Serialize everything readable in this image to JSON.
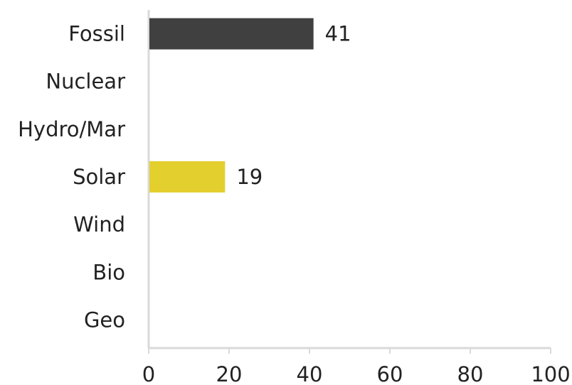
{
  "chart_data": {
    "type": "bar",
    "orientation": "horizontal",
    "categories": [
      "Fossil",
      "Nuclear",
      "Hydro/Mar",
      "Solar",
      "Wind",
      "Bio",
      "Geo"
    ],
    "values": [
      41,
      null,
      null,
      19,
      null,
      null,
      null
    ],
    "data_labels": [
      "41",
      "",
      "",
      "19",
      "",
      "",
      ""
    ],
    "colors": [
      "#404040",
      null,
      null,
      "#e3cf2e",
      null,
      null,
      null
    ],
    "xlim": [
      0,
      100
    ],
    "xticks": [
      0,
      20,
      40,
      60,
      80,
      100
    ],
    "grid": false,
    "legend": "none",
    "axis_color": "#d9d9d9"
  }
}
